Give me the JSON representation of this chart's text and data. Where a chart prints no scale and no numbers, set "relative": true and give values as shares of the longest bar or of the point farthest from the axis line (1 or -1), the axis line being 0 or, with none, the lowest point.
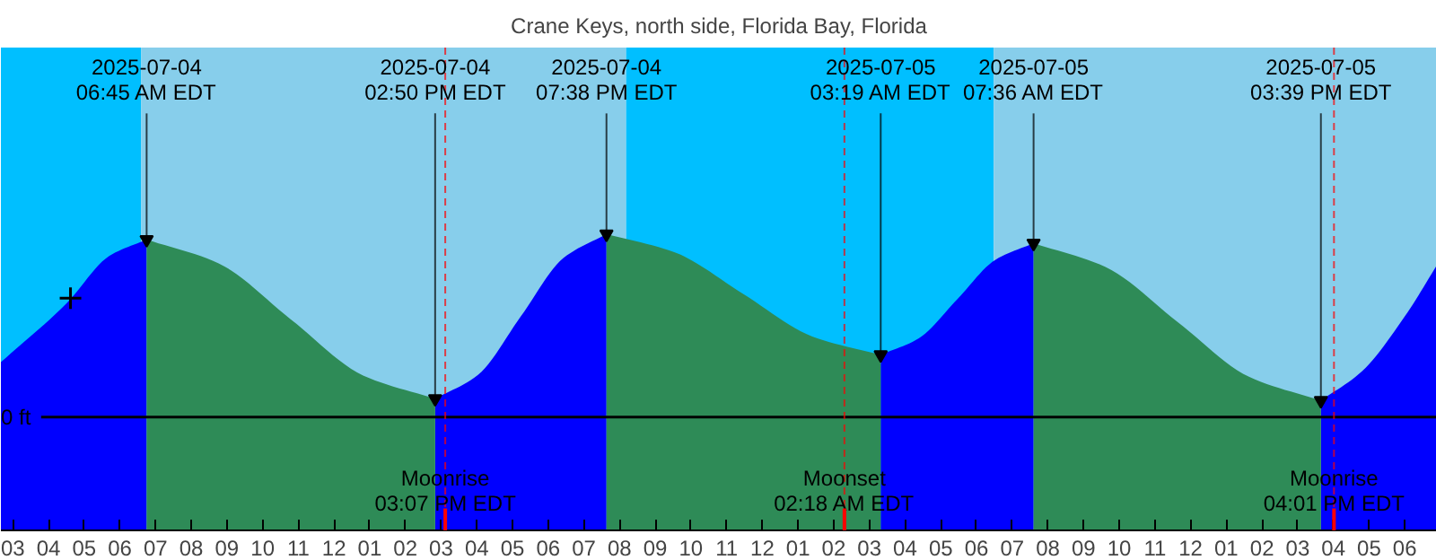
{
  "chart_data": {
    "type": "area",
    "relative": true,
    "title": "Crane Keys, north side, Florida Bay, Florida",
    "xlim": [
      "2025-07-04T02:40",
      "2025-07-05T18:54"
    ],
    "xticks": [
      {
        "value": "2025-07-04T03:00",
        "label": "03"
      },
      {
        "value": "2025-07-04T04:00",
        "label": "04"
      },
      {
        "value": "2025-07-04T05:00",
        "label": "05"
      },
      {
        "value": "2025-07-04T06:00",
        "label": "06"
      },
      {
        "value": "2025-07-04T07:00",
        "label": "07"
      },
      {
        "value": "2025-07-04T08:00",
        "label": "08"
      },
      {
        "value": "2025-07-04T09:00",
        "label": "09"
      },
      {
        "value": "2025-07-04T10:00",
        "label": "10"
      },
      {
        "value": "2025-07-04T11:00",
        "label": "11"
      },
      {
        "value": "2025-07-04T12:00",
        "label": "12"
      },
      {
        "value": "2025-07-04T13:00",
        "label": "01"
      },
      {
        "value": "2025-07-04T14:00",
        "label": "02"
      },
      {
        "value": "2025-07-04T15:00",
        "label": "03"
      },
      {
        "value": "2025-07-04T16:00",
        "label": "04"
      },
      {
        "value": "2025-07-04T17:00",
        "label": "05"
      },
      {
        "value": "2025-07-04T18:00",
        "label": "06"
      },
      {
        "value": "2025-07-04T19:00",
        "label": "07"
      },
      {
        "value": "2025-07-04T20:00",
        "label": "08"
      },
      {
        "value": "2025-07-04T21:00",
        "label": "09"
      },
      {
        "value": "2025-07-04T22:00",
        "label": "10"
      },
      {
        "value": "2025-07-04T23:00",
        "label": "11"
      },
      {
        "value": "2025-07-05T00:00",
        "label": "12"
      },
      {
        "value": "2025-07-05T01:00",
        "label": "01"
      },
      {
        "value": "2025-07-05T02:00",
        "label": "02"
      },
      {
        "value": "2025-07-05T03:00",
        "label": "03"
      },
      {
        "value": "2025-07-05T04:00",
        "label": "04"
      },
      {
        "value": "2025-07-05T05:00",
        "label": "05"
      },
      {
        "value": "2025-07-05T06:00",
        "label": "06"
      },
      {
        "value": "2025-07-05T07:00",
        "label": "07"
      },
      {
        "value": "2025-07-05T08:00",
        "label": "08"
      },
      {
        "value": "2025-07-05T09:00",
        "label": "09"
      },
      {
        "value": "2025-07-05T10:00",
        "label": "10"
      },
      {
        "value": "2025-07-05T11:00",
        "label": "11"
      },
      {
        "value": "2025-07-05T12:00",
        "label": "12"
      },
      {
        "value": "2025-07-05T13:00",
        "label": "01"
      },
      {
        "value": "2025-07-05T14:00",
        "label": "02"
      },
      {
        "value": "2025-07-05T15:00",
        "label": "03"
      },
      {
        "value": "2025-07-05T16:00",
        "label": "04"
      },
      {
        "value": "2025-07-05T17:00",
        "label": "05"
      },
      {
        "value": "2025-07-05T18:00",
        "label": "06"
      }
    ],
    "tick_labels": "x",
    "series": [
      {
        "color": "#0000ff",
        "x": [
          "2025-07-04T02:40",
          "2025-07-04T04:30",
          "2025-07-04T05:42",
          "2025-07-04T06:45",
          "2025-07-04T10:00",
          "2025-07-04T14:50",
          "2025-07-04T16:02",
          "2025-07-04T17:14",
          "2025-07-04T18:26",
          "2025-07-04T19:38",
          "2025-07-04T23:00",
          "2025-07-05T03:19",
          "2025-07-05T04:23",
          "2025-07-05T05:28",
          "2025-07-05T06:32",
          "2025-07-05T07:36",
          "2025-07-05T11:00",
          "2025-07-05T15:39",
          "2025-07-05T16:48",
          "2025-07-05T18:00",
          "2025-07-05T18:54"
        ],
        "values": [
          0.3,
          0.62,
          0.88,
          0.97,
          null,
          0.1,
          0.23,
          0.55,
          0.87,
          1.0,
          null,
          0.34,
          0.43,
          0.645,
          0.86,
          0.95,
          null,
          0.09,
          0.25,
          0.55,
          0.83
        ]
      },
      {
        "color": "#2e8b57",
        "x": [
          "2025-07-04T06:45",
          "2025-07-04T08:46",
          "2025-07-04T10:47",
          "2025-07-04T12:49",
          "2025-07-04T14:50",
          "2025-07-04T17:00",
          "2025-07-04T19:38",
          "2025-07-04T21:33",
          "2025-07-04T23:29",
          "2025-07-05T01:24",
          "2025-07-05T03:19",
          "2025-07-05T05:30",
          "2025-07-05T07:36",
          "2025-07-05T09:37",
          "2025-07-05T11:38",
          "2025-07-05T13:38",
          "2025-07-05T15:39"
        ],
        "values": [
          0.97,
          0.84,
          0.535,
          0.227,
          0.1,
          null,
          1.0,
          0.9,
          0.67,
          0.44,
          0.34,
          null,
          0.95,
          0.82,
          0.52,
          0.22,
          0.09
        ]
      },
      {
        "type": "scatter",
        "color": "#000000",
        "marker": "cross",
        "x": [
          "2025-07-04T04:37"
        ],
        "values": [
          0.65
        ]
      }
    ],
    "bands": [
      {
        "axis": "x",
        "from": "2025-07-04T02:40",
        "to": "2025-07-04T06:36",
        "color": "#00bfff"
      },
      {
        "axis": "x",
        "from": "2025-07-04T06:36",
        "to": "2025-07-04T20:11",
        "color": "#87ceeb"
      },
      {
        "axis": "x",
        "from": "2025-07-04T20:11",
        "to": "2025-07-05T06:29",
        "color": "#00bfff"
      },
      {
        "axis": "x",
        "from": "2025-07-05T06:29",
        "to": "2025-07-05T18:54",
        "color": "#87ceeb"
      }
    ],
    "ref_lines": [
      {
        "axis": "y",
        "value": 0,
        "label": "0 ft",
        "color": "#000000"
      },
      {
        "axis": "x",
        "value": "2025-07-04T15:07",
        "label": "Moonrise\n03:07 PM EDT",
        "color": "#ff0000"
      },
      {
        "axis": "x",
        "value": "2025-07-05T02:18",
        "label": "Moonset\n02:18 AM EDT",
        "color": "#ff0000"
      },
      {
        "axis": "x",
        "value": "2025-07-05T16:01",
        "label": "Moonrise\n04:01 PM EDT",
        "color": "#ff0000"
      }
    ],
    "annotations": [
      {
        "text": "2025-07-04\n06:45 AM EDT",
        "x": "2025-07-04T06:45",
        "y": 0.97
      },
      {
        "text": "2025-07-04\n02:50 PM EDT",
        "x": "2025-07-04T14:50",
        "y": 0.1
      },
      {
        "text": "2025-07-04\n07:38 PM EDT",
        "x": "2025-07-04T19:38",
        "y": 1.0
      },
      {
        "text": "2025-07-05\n03:19 AM EDT",
        "x": "2025-07-05T03:19",
        "y": 0.34
      },
      {
        "text": "2025-07-05\n07:36 AM EDT",
        "x": "2025-07-05T07:36",
        "y": 0.95
      },
      {
        "text": "2025-07-05\n03:39 PM EDT",
        "x": "2025-07-05T15:39",
        "y": 0.09
      }
    ]
  }
}
